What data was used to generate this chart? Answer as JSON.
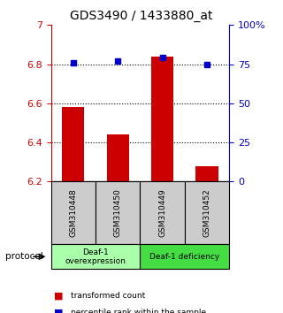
{
  "title": "GDS3490 / 1433880_at",
  "samples": [
    "GSM310448",
    "GSM310450",
    "GSM310449",
    "GSM310452"
  ],
  "bar_values": [
    6.58,
    6.44,
    6.84,
    6.28
  ],
  "dot_values": [
    76,
    77,
    79,
    75
  ],
  "ylim_left": [
    6.2,
    7.0
  ],
  "ylim_right": [
    0,
    100
  ],
  "yticks_left": [
    6.2,
    6.4,
    6.6,
    6.8,
    7.0
  ],
  "yticks_right": [
    0,
    25,
    50,
    75,
    100
  ],
  "ytick_labels_left": [
    "6.2",
    "6.4",
    "6.6",
    "6.8",
    "7"
  ],
  "ytick_labels_right": [
    "0",
    "25",
    "50",
    "75",
    "100%"
  ],
  "bar_color": "#cc0000",
  "dot_color": "#0000cc",
  "bar_bottom": 6.2,
  "protocol_label": "protocol",
  "legend_bar_label": "transformed count",
  "legend_dot_label": "percentile rank within the sample",
  "tick_color_left": "#cc0000",
  "tick_color_right": "#0000cc",
  "sample_box_color": "#cccccc",
  "sample_box_border": "#000000",
  "group_configs": [
    {
      "start": 0,
      "end": 2,
      "label": "Deaf-1\noverexpression",
      "color": "#aaffaa"
    },
    {
      "start": 2,
      "end": 4,
      "label": "Deaf-1 deficiency",
      "color": "#44dd44"
    }
  ],
  "background_color": "#ffffff"
}
